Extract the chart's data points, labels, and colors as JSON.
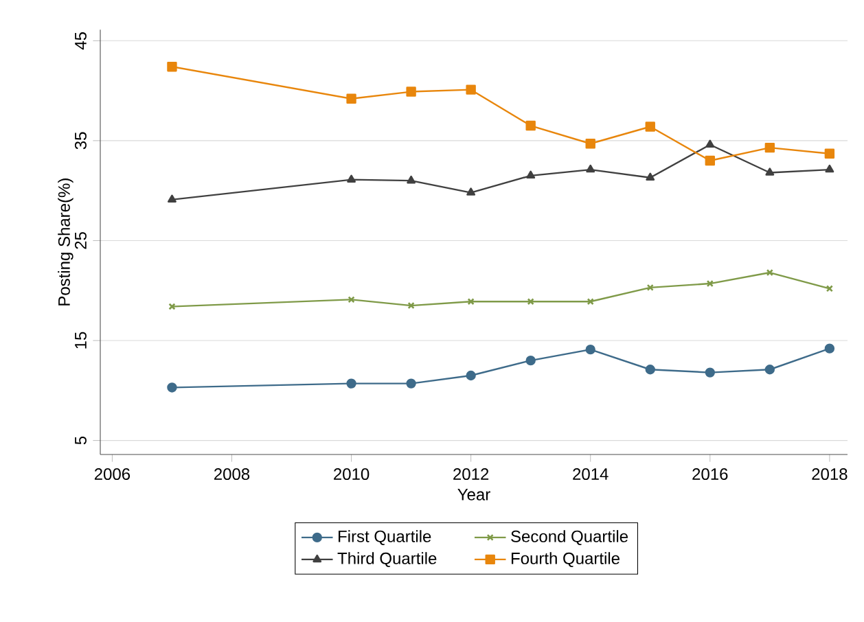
{
  "chart_data": {
    "type": "line",
    "xlabel": "Year",
    "ylabel": "Posting Share(%)",
    "x": [
      2007,
      2010,
      2011,
      2012,
      2013,
      2014,
      2015,
      2016,
      2017,
      2018
    ],
    "xlim": [
      2005.8,
      2018.3
    ],
    "xticks": [
      2006,
      2008,
      2010,
      2012,
      2014,
      2016,
      2018
    ],
    "ylim": [
      3.6,
      46.1
    ],
    "yticks": [
      5,
      15,
      25,
      35,
      45
    ],
    "grid": "y",
    "legend": "bottom",
    "line_style": "solid",
    "series": [
      {
        "name": "First Quartile",
        "color": "#3e6b8a",
        "marker": "circle",
        "values": [
          10.3,
          10.7,
          10.7,
          11.5,
          13.0,
          14.1,
          12.1,
          11.8,
          12.1,
          14.2
        ]
      },
      {
        "name": "Second Quartile",
        "color": "#7f9a48",
        "marker": "cross",
        "values": [
          18.4,
          19.1,
          18.5,
          18.9,
          18.9,
          18.9,
          20.3,
          20.7,
          21.8,
          20.2
        ]
      },
      {
        "name": "Third Quartile",
        "color": "#404040",
        "marker": "triangle",
        "values": [
          29.1,
          31.1,
          31.0,
          29.8,
          31.5,
          32.1,
          31.3,
          34.6,
          31.8,
          32.1
        ]
      },
      {
        "name": "Fourth Quartile",
        "color": "#e8860c",
        "marker": "square",
        "values": [
          42.4,
          39.2,
          39.9,
          40.1,
          36.5,
          34.7,
          36.4,
          33.0,
          34.3,
          33.7
        ]
      }
    ]
  }
}
